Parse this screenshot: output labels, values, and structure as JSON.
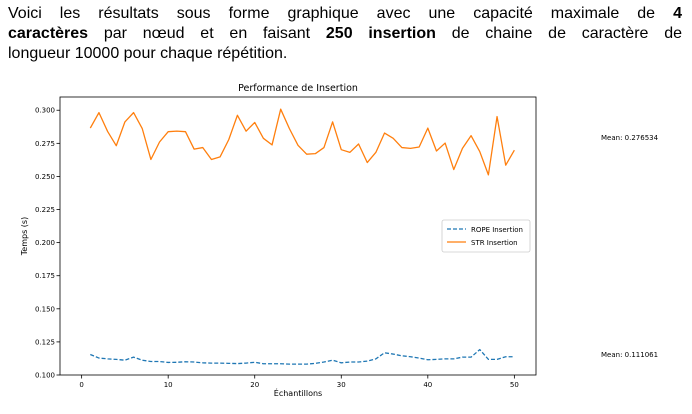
{
  "intro": {
    "line1_a": "Voici les résultats sous forme graphique avec une capacité maximale de ",
    "line1_b": "4",
    "line2_a": "caractères",
    "line2_b": " par nœud et en faisant ",
    "line2_c": "250 insertion",
    "line2_d": " de chaine de caractère de",
    "line3": "longueur 10000 pour chaque répétition."
  },
  "annotations": {
    "mean_str": "Mean: 0.276534",
    "mean_rope": "Mean: 0.111061"
  },
  "chart_data": {
    "type": "line",
    "title": "Performance de Insertion",
    "xlabel": "Échantillons",
    "ylabel": "Temps (s)",
    "xlim": [
      -2.5,
      52.5
    ],
    "ylim": [
      0.1,
      0.31
    ],
    "xticks": [
      0,
      10,
      20,
      30,
      40,
      50
    ],
    "yticks": [
      0.1,
      0.125,
      0.15,
      0.175,
      0.2,
      0.225,
      0.25,
      0.275,
      0.3
    ],
    "ytick_labels": [
      "0.100",
      "0.125",
      "0.150",
      "0.175",
      "0.200",
      "0.225",
      "0.250",
      "0.275",
      "0.300"
    ],
    "legend_position": "center-right",
    "grid": false,
    "x": [
      1,
      2,
      3,
      4,
      5,
      6,
      7,
      8,
      9,
      10,
      11,
      12,
      13,
      14,
      15,
      16,
      17,
      18,
      19,
      20,
      21,
      22,
      23,
      24,
      25,
      26,
      27,
      28,
      29,
      30,
      31,
      32,
      33,
      34,
      35,
      36,
      37,
      38,
      39,
      40,
      41,
      42,
      43,
      44,
      45,
      46,
      47,
      48,
      49,
      50
    ],
    "series": [
      {
        "name": "ROPE Insertion",
        "color": "#1f77b4",
        "style": "dashed",
        "values": [
          0.1155,
          0.1128,
          0.1122,
          0.1118,
          0.1112,
          0.1135,
          0.1112,
          0.1102,
          0.1102,
          0.1095,
          0.1096,
          0.11,
          0.1098,
          0.1092,
          0.109,
          0.109,
          0.1088,
          0.1086,
          0.109,
          0.1096,
          0.1085,
          0.1085,
          0.1085,
          0.1082,
          0.1082,
          0.1082,
          0.1088,
          0.1098,
          0.1112,
          0.1092,
          0.1098,
          0.1098,
          0.1105,
          0.1122,
          0.1168,
          0.1158,
          0.1145,
          0.1138,
          0.1128,
          0.1115,
          0.1118,
          0.1122,
          0.1122,
          0.1135,
          0.1135,
          0.1192,
          0.1118,
          0.1118,
          0.1138,
          0.1138
        ]
      },
      {
        "name": "STR Insertion",
        "color": "#ff7f0e",
        "style": "solid",
        "values": [
          0.2865,
          0.2982,
          0.284,
          0.2732,
          0.2912,
          0.2982,
          0.2862,
          0.2628,
          0.276,
          0.2838,
          0.2842,
          0.2838,
          0.2706,
          0.2718,
          0.2628,
          0.2648,
          0.2778,
          0.2962,
          0.2842,
          0.2908,
          0.2788,
          0.2738,
          0.3008,
          0.2862,
          0.2735,
          0.2668,
          0.2672,
          0.2718,
          0.2912,
          0.2702,
          0.2682,
          0.2745,
          0.2605,
          0.2682,
          0.2828,
          0.2788,
          0.2718,
          0.2712,
          0.2722,
          0.2865,
          0.2692,
          0.2752,
          0.2552,
          0.2712,
          0.2808,
          0.2688,
          0.2512,
          0.2952,
          0.2585,
          0.2698
        ]
      }
    ]
  }
}
